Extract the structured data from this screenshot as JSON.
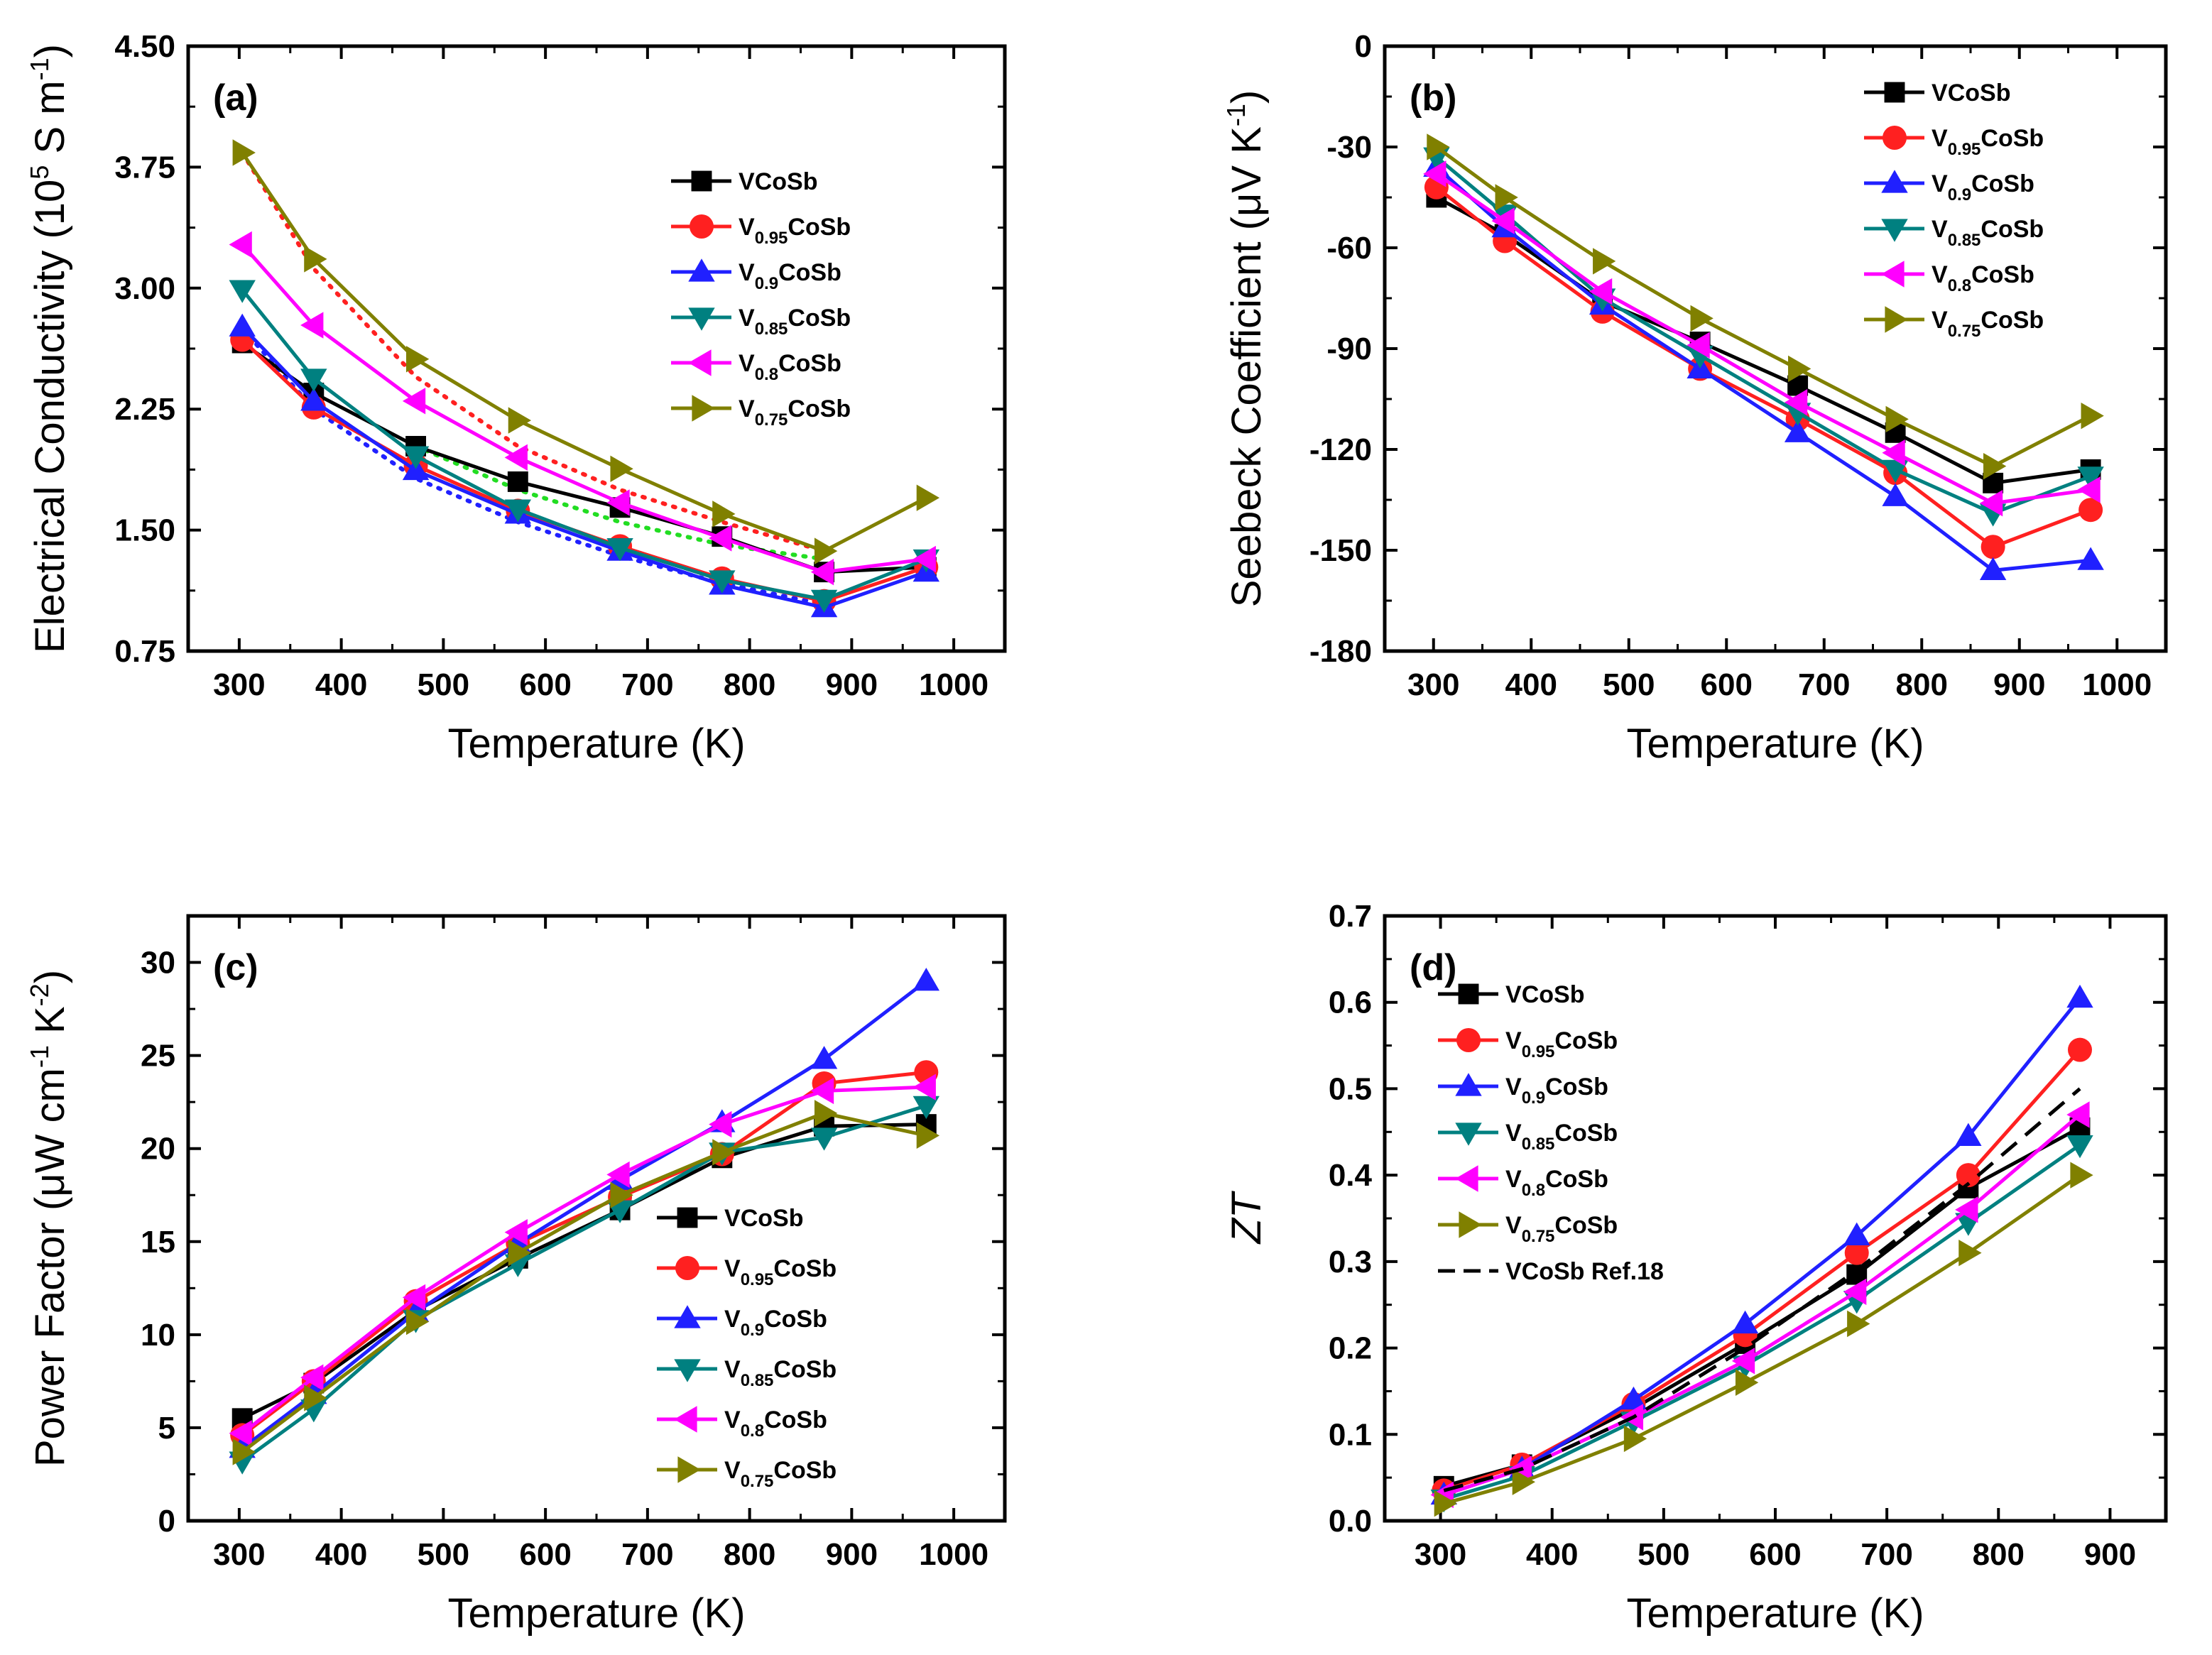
{
  "chart_data": [
    {
      "type": "line",
      "panel_label": "(a)",
      "xlabel": "Temperature (K)",
      "ylabel_parts": [
        "Electrical Conductivity (10",
        "5",
        " S m",
        "-1",
        ")"
      ],
      "xlim": [
        250,
        1050
      ],
      "ylim": [
        0.75,
        4.5
      ],
      "xticks": [
        300,
        400,
        500,
        600,
        700,
        800,
        900,
        1000
      ],
      "xtick_labels": [
        "300",
        "400",
        "500",
        "600",
        "700",
        "800",
        "900",
        "1000"
      ],
      "yticks": [
        0.75,
        1.5,
        2.25,
        3.0,
        3.75,
        4.5
      ],
      "ytick_labels": [
        "0.75",
        "1.50",
        "2.25",
        "3.00",
        "3.75",
        "4.50"
      ],
      "legend_position": "top-right",
      "series": [
        {
          "name": "VCoSb",
          "name_parts": [
            "V",
            "",
            "CoSb"
          ],
          "color": "#000000",
          "marker": "square",
          "x": [
            303,
            373,
            473,
            573,
            673,
            773,
            873,
            973
          ],
          "values": [
            2.66,
            2.35,
            2.02,
            1.8,
            1.64,
            1.46,
            1.24,
            1.27
          ]
        },
        {
          "name": "V0.95CoSb",
          "name_parts": [
            "V",
            "0.95",
            "CoSb"
          ],
          "color": "#ff2020",
          "marker": "circle",
          "x": [
            303,
            373,
            473,
            573,
            673,
            773,
            873,
            973
          ],
          "values": [
            2.68,
            2.26,
            1.9,
            1.62,
            1.4,
            1.2,
            1.06,
            1.27
          ]
        },
        {
          "name": "V0.9CoSb",
          "name_parts": [
            "V",
            "0.9",
            "CoSb"
          ],
          "color": "#2020ff",
          "marker": "triangle-up",
          "x": [
            303,
            373,
            473,
            573,
            673,
            773,
            873,
            973
          ],
          "values": [
            2.76,
            2.3,
            1.87,
            1.6,
            1.37,
            1.16,
            1.02,
            1.24
          ]
        },
        {
          "name": "V0.85CoSb",
          "name_parts": [
            "V",
            "0.85",
            "CoSb"
          ],
          "color": "#008080",
          "marker": "triangle-down",
          "x": [
            303,
            373,
            473,
            573,
            673,
            773,
            873,
            973
          ],
          "values": [
            2.99,
            2.44,
            1.96,
            1.63,
            1.39,
            1.19,
            1.07,
            1.32
          ]
        },
        {
          "name": "V0.8CoSb",
          "name_parts": [
            "V",
            "0.8",
            "CoSb"
          ],
          "color": "#ff00ff",
          "marker": "triangle-left",
          "x": [
            303,
            373,
            473,
            573,
            673,
            773,
            873,
            973
          ],
          "values": [
            3.27,
            2.77,
            2.3,
            1.95,
            1.67,
            1.45,
            1.24,
            1.32
          ]
        },
        {
          "name": "V0.75CoSb",
          "name_parts": [
            "V",
            "0.75",
            "CoSb"
          ],
          "color": "#808000",
          "marker": "triangle-right",
          "x": [
            303,
            373,
            473,
            573,
            673,
            773,
            873,
            973
          ],
          "values": [
            3.84,
            3.18,
            2.56,
            2.18,
            1.88,
            1.6,
            1.37,
            1.7
          ]
        }
      ],
      "fit_lines": [
        {
          "color": "#ff2020",
          "x": [
            303,
            373,
            473,
            573,
            673,
            773,
            873
          ],
          "values": [
            3.84,
            3.12,
            2.45,
            2.02,
            1.75,
            1.55,
            1.37
          ]
        },
        {
          "color": "#22dd22",
          "x": [
            473,
            573,
            673,
            773,
            873
          ],
          "values": [
            2.02,
            1.75,
            1.55,
            1.41,
            1.32
          ]
        },
        {
          "color": "#2020ff",
          "x": [
            303,
            373,
            473,
            573,
            673,
            773,
            873
          ],
          "values": [
            2.75,
            2.25,
            1.82,
            1.55,
            1.34,
            1.17,
            1.04
          ]
        }
      ]
    },
    {
      "type": "line",
      "panel_label": "(b)",
      "xlabel": "Temperature (K)",
      "ylabel_parts": [
        "Seebeck Coefficient (μV K",
        "-1",
        ")"
      ],
      "xlim": [
        250,
        1050
      ],
      "ylim": [
        -180,
        0
      ],
      "xticks": [
        300,
        400,
        500,
        600,
        700,
        800,
        900,
        1000
      ],
      "xtick_labels": [
        "300",
        "400",
        "500",
        "600",
        "700",
        "800",
        "900",
        "1000"
      ],
      "yticks": [
        -180,
        -150,
        -120,
        -90,
        -60,
        -30,
        0
      ],
      "ytick_labels": [
        "-180",
        "-150",
        "-120",
        "-90",
        "-60",
        "-30",
        "0"
      ],
      "legend_position": "top-right",
      "series": [
        {
          "name": "VCoSb",
          "name_parts": [
            "V",
            "",
            "CoSb"
          ],
          "color": "#000000",
          "marker": "square",
          "x": [
            303,
            373,
            473,
            573,
            673,
            773,
            873,
            973
          ],
          "values": [
            -45,
            -56,
            -76,
            -88,
            -101,
            -115,
            -130,
            -126
          ]
        },
        {
          "name": "V0.95CoSb",
          "name_parts": [
            "V",
            "0.95",
            "CoSb"
          ],
          "color": "#ff2020",
          "marker": "circle",
          "x": [
            303,
            373,
            473,
            573,
            673,
            773,
            873,
            973
          ],
          "values": [
            -42,
            -58,
            -79,
            -96,
            -111,
            -127,
            -149,
            -138
          ]
        },
        {
          "name": "V0.9CoSb",
          "name_parts": [
            "V",
            "0.9",
            "CoSb"
          ],
          "color": "#2020ff",
          "marker": "triangle-up",
          "x": [
            303,
            373,
            473,
            573,
            673,
            773,
            873,
            973
          ],
          "values": [
            -36,
            -54,
            -77,
            -96,
            -115,
            -134,
            -156,
            -153
          ]
        },
        {
          "name": "V0.85CoSb",
          "name_parts": [
            "V",
            "0.85",
            "CoSb"
          ],
          "color": "#008080",
          "marker": "triangle-down",
          "x": [
            303,
            373,
            473,
            573,
            673,
            773,
            873,
            973
          ],
          "values": [
            -33,
            -50,
            -75,
            -92,
            -109,
            -126,
            -139,
            -128
          ]
        },
        {
          "name": "V0.8CoSb",
          "name_parts": [
            "V",
            "0.8",
            "CoSb"
          ],
          "color": "#ff00ff",
          "marker": "triangle-left",
          "x": [
            303,
            373,
            473,
            573,
            673,
            773,
            873,
            973
          ],
          "values": [
            -38,
            -52,
            -73,
            -89,
            -106,
            -121,
            -136,
            -132
          ]
        },
        {
          "name": "V0.75CoSb",
          "name_parts": [
            "V",
            "0.75",
            "CoSb"
          ],
          "color": "#808000",
          "marker": "triangle-right",
          "x": [
            303,
            373,
            473,
            573,
            673,
            773,
            873,
            973
          ],
          "values": [
            -30,
            -45,
            -64,
            -81,
            -96,
            -111,
            -125,
            -110
          ]
        }
      ]
    },
    {
      "type": "line",
      "panel_label": "(c)",
      "xlabel": "Temperature (K)",
      "ylabel_parts": [
        "Power Factor (μW cm",
        "-1",
        " K",
        "-2",
        ")"
      ],
      "xlim": [
        250,
        1050
      ],
      "ylim": [
        0,
        32.5
      ],
      "xticks": [
        300,
        400,
        500,
        600,
        700,
        800,
        900,
        1000
      ],
      "xtick_labels": [
        "300",
        "400",
        "500",
        "600",
        "700",
        "800",
        "900",
        "1000"
      ],
      "yticks": [
        0,
        5,
        10,
        15,
        20,
        25,
        30
      ],
      "ytick_labels": [
        "0",
        "5",
        "10",
        "15",
        "20",
        "25",
        "30"
      ],
      "legend_position": "bottom-right",
      "series": [
        {
          "name": "VCoSb",
          "name_parts": [
            "V",
            "",
            "CoSb"
          ],
          "color": "#000000",
          "marker": "square",
          "x": [
            303,
            373,
            473,
            573,
            673,
            773,
            873,
            973
          ],
          "values": [
            5.5,
            7.4,
            11.3,
            14.1,
            16.7,
            19.5,
            21.2,
            21.3
          ]
        },
        {
          "name": "V0.95CoSb",
          "name_parts": [
            "V",
            "0.95",
            "CoSb"
          ],
          "color": "#ff2020",
          "marker": "circle",
          "x": [
            303,
            373,
            473,
            573,
            673,
            773,
            873,
            973
          ],
          "values": [
            4.6,
            7.5,
            11.8,
            14.9,
            17.4,
            19.7,
            23.5,
            24.1
          ]
        },
        {
          "name": "V0.9CoSb",
          "name_parts": [
            "V",
            "0.9",
            "CoSb"
          ],
          "color": "#2020ff",
          "marker": "triangle-up",
          "x": [
            303,
            373,
            473,
            573,
            673,
            773,
            873,
            973
          ],
          "values": [
            3.9,
            6.8,
            11.2,
            14.9,
            18.3,
            21.4,
            24.8,
            29.0
          ]
        },
        {
          "name": "V0.85CoSb",
          "name_parts": [
            "V",
            "0.85",
            "CoSb"
          ],
          "color": "#008080",
          "marker": "triangle-down",
          "x": [
            303,
            373,
            473,
            573,
            673,
            773,
            873,
            973
          ],
          "values": [
            3.2,
            6.0,
            10.8,
            13.8,
            16.7,
            19.8,
            20.6,
            22.3
          ]
        },
        {
          "name": "V0.8CoSb",
          "name_parts": [
            "V",
            "0.8",
            "CoSb"
          ],
          "color": "#ff00ff",
          "marker": "triangle-left",
          "x": [
            303,
            373,
            473,
            573,
            673,
            773,
            873,
            973
          ],
          "values": [
            4.7,
            7.7,
            12.0,
            15.5,
            18.6,
            21.3,
            23.1,
            23.3
          ]
        },
        {
          "name": "V0.75CoSb",
          "name_parts": [
            "V",
            "0.75",
            "CoSb"
          ],
          "color": "#808000",
          "marker": "triangle-right",
          "x": [
            303,
            373,
            473,
            573,
            673,
            773,
            873,
            973
          ],
          "values": [
            3.7,
            6.6,
            10.7,
            14.4,
            17.5,
            19.8,
            21.9,
            20.7
          ]
        }
      ]
    },
    {
      "type": "line",
      "panel_label": "(d)",
      "xlabel": "Temperature (K)",
      "ylabel_parts": [
        "ZT"
      ],
      "xlim": [
        250,
        950
      ],
      "ylim": [
        0,
        0.7
      ],
      "xticks": [
        300,
        400,
        500,
        600,
        700,
        800,
        900
      ],
      "xtick_labels": [
        "300",
        "400",
        "500",
        "600",
        "700",
        "800",
        "900"
      ],
      "yticks": [
        0,
        0.1,
        0.2,
        0.3,
        0.4,
        0.5,
        0.6,
        0.7
      ],
      "ytick_labels": [
        "0.0",
        "0.1",
        "0.2",
        "0.3",
        "0.4",
        "0.5",
        "0.6",
        "0.7"
      ],
      "legend_position": "top-left",
      "series": [
        {
          "name": "VCoSb",
          "name_parts": [
            "V",
            "",
            "CoSb"
          ],
          "color": "#000000",
          "marker": "square",
          "x": [
            303,
            373,
            473,
            573,
            673,
            773,
            873
          ],
          "values": [
            0.04,
            0.065,
            0.13,
            0.205,
            0.285,
            0.385,
            0.455
          ]
        },
        {
          "name": "V0.95CoSb",
          "name_parts": [
            "V",
            "0.95",
            "CoSb"
          ],
          "color": "#ff2020",
          "marker": "circle",
          "x": [
            303,
            373,
            473,
            573,
            673,
            773,
            873
          ],
          "values": [
            0.035,
            0.065,
            0.135,
            0.215,
            0.31,
            0.4,
            0.545
          ]
        },
        {
          "name": "V0.9CoSb",
          "name_parts": [
            "V",
            "0.9",
            "CoSb"
          ],
          "color": "#2020ff",
          "marker": "triangle-up",
          "x": [
            303,
            373,
            473,
            573,
            673,
            773,
            873
          ],
          "values": [
            0.03,
            0.06,
            0.14,
            0.228,
            0.33,
            0.445,
            0.605
          ]
        },
        {
          "name": "V0.85CoSb",
          "name_parts": [
            "V",
            "0.85",
            "CoSb"
          ],
          "color": "#008080",
          "marker": "triangle-down",
          "x": [
            303,
            373,
            473,
            573,
            673,
            773,
            873
          ],
          "values": [
            0.025,
            0.052,
            0.115,
            0.18,
            0.255,
            0.345,
            0.435
          ]
        },
        {
          "name": "V0.8CoSb",
          "name_parts": [
            "V",
            "0.8",
            "CoSb"
          ],
          "color": "#ff00ff",
          "marker": "triangle-left",
          "x": [
            303,
            373,
            473,
            573,
            673,
            773,
            873
          ],
          "values": [
            0.03,
            0.06,
            0.12,
            0.185,
            0.265,
            0.36,
            0.47
          ]
        },
        {
          "name": "V0.75CoSb",
          "name_parts": [
            "V",
            "0.75",
            "CoSb"
          ],
          "color": "#808000",
          "marker": "triangle-right",
          "x": [
            303,
            373,
            473,
            573,
            673,
            773,
            873
          ],
          "values": [
            0.02,
            0.045,
            0.095,
            0.16,
            0.228,
            0.31,
            0.4
          ]
        },
        {
          "name": "VCoSb Ref.18",
          "name_parts": [
            "VCoSb Ref.18",
            "",
            ""
          ],
          "color": "#000000",
          "marker": "none",
          "dashed": true,
          "x": [
            303,
            373,
            473,
            573,
            673,
            773,
            873
          ],
          "values": [
            0.035,
            0.06,
            0.12,
            0.2,
            0.29,
            0.39,
            0.5
          ]
        }
      ]
    }
  ]
}
